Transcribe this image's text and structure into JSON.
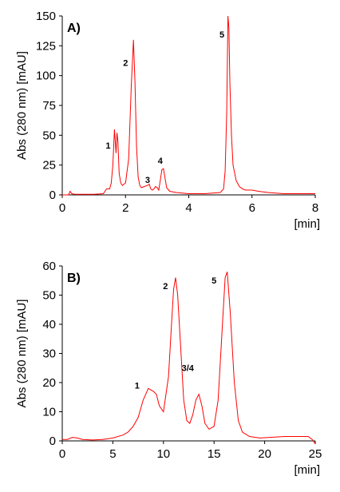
{
  "chart_data": [
    {
      "type": "line",
      "panel_label": "A)",
      "xlabel": "[min]",
      "ylabel": "Abs (280 nm) [mAU]",
      "xlim": [
        0,
        8
      ],
      "ylim": [
        0,
        150
      ],
      "x_ticks": [
        0,
        2,
        4,
        6,
        8
      ],
      "y_ticks": [
        0,
        25,
        50,
        75,
        100,
        125,
        150
      ],
      "line_color": "#ff0000",
      "series": [
        {
          "x": [
            0,
            0.2,
            0.25,
            0.3,
            0.4,
            0.6,
            1.0,
            1.3,
            1.4,
            1.5,
            1.55,
            1.6,
            1.65,
            1.7,
            1.73,
            1.76,
            1.8,
            1.85,
            1.9,
            2.0,
            2.1,
            2.18,
            2.25,
            2.3,
            2.35,
            2.4,
            2.45,
            2.5,
            2.6,
            2.7,
            2.75,
            2.8,
            2.85,
            2.9,
            2.95,
            3.0,
            3.05,
            3.1,
            3.15,
            3.2,
            3.25,
            3.3,
            3.4,
            3.6,
            4.0,
            4.5,
            5.0,
            5.1,
            5.15,
            5.2,
            5.24,
            5.27,
            5.3,
            5.35,
            5.4,
            5.5,
            5.6,
            5.7,
            5.8,
            6.0,
            6.2,
            6.5,
            7.0,
            7.5,
            8.0
          ],
          "y": [
            0,
            0,
            3,
            1,
            0.5,
            0.5,
            0.5,
            1,
            5,
            5,
            10,
            25,
            55,
            35,
            52,
            45,
            18,
            10,
            8,
            10,
            30,
            90,
            130,
            95,
            40,
            15,
            8,
            6,
            7,
            8,
            9,
            5,
            4,
            5,
            7,
            6,
            4,
            12,
            21,
            22,
            14,
            6,
            3,
            2,
            1,
            1,
            2,
            5,
            20,
            70,
            150,
            140,
            95,
            50,
            25,
            12,
            7,
            5,
            4,
            4,
            3,
            2,
            1,
            1,
            1
          ]
        }
      ],
      "annotations": [
        {
          "text": "1",
          "x": 1.45,
          "y": 39
        },
        {
          "text": "2",
          "x": 2.0,
          "y": 108
        },
        {
          "text": "3",
          "x": 2.7,
          "y": 10
        },
        {
          "text": "4",
          "x": 3.1,
          "y": 26
        },
        {
          "text": "5",
          "x": 5.05,
          "y": 132
        }
      ]
    },
    {
      "type": "line",
      "panel_label": "B)",
      "xlabel": "[min]",
      "ylabel": "Abs (280 nm) [mAU]",
      "xlim": [
        0,
        25
      ],
      "ylim": [
        0,
        60
      ],
      "x_ticks": [
        0,
        5,
        10,
        15,
        20,
        25
      ],
      "y_ticks": [
        0,
        10,
        20,
        30,
        40,
        50,
        60
      ],
      "line_color": "#ff0000",
      "series": [
        {
          "x": [
            0,
            0.5,
            1.0,
            1.5,
            2,
            3,
            4,
            5,
            6,
            6.5,
            7,
            7.5,
            8,
            8.5,
            9,
            9.3,
            9.6,
            10,
            10.5,
            10.8,
            11,
            11.2,
            11.4,
            11.7,
            12,
            12.3,
            12.6,
            12.9,
            13.2,
            13.5,
            13.8,
            14.1,
            14.5,
            15,
            15.4,
            15.8,
            16.1,
            16.3,
            16.6,
            17,
            17.4,
            17.8,
            18.5,
            19.5,
            20.5,
            22,
            23.5,
            24.3,
            24.7,
            25
          ],
          "y": [
            0.5,
            0.5,
            1.2,
            1.0,
            0.5,
            0.3,
            0.5,
            1,
            2,
            3,
            5,
            8,
            14,
            18,
            17,
            16,
            12,
            10,
            22,
            40,
            52,
            56,
            50,
            32,
            14,
            7,
            6,
            9,
            14,
            16,
            12,
            6,
            4,
            5,
            14,
            38,
            56,
            58,
            44,
            20,
            7,
            3,
            1.5,
            1,
            1.2,
            1.5,
            1.5,
            1.5,
            0.5,
            -1
          ]
        }
      ],
      "annotations": [
        {
          "text": "1",
          "x": 7.4,
          "y": 18
        },
        {
          "text": "2",
          "x": 10.2,
          "y": 52
        },
        {
          "text": "3/4",
          "x": 12.4,
          "y": 24
        },
        {
          "text": "5",
          "x": 15.0,
          "y": 54
        }
      ]
    }
  ]
}
